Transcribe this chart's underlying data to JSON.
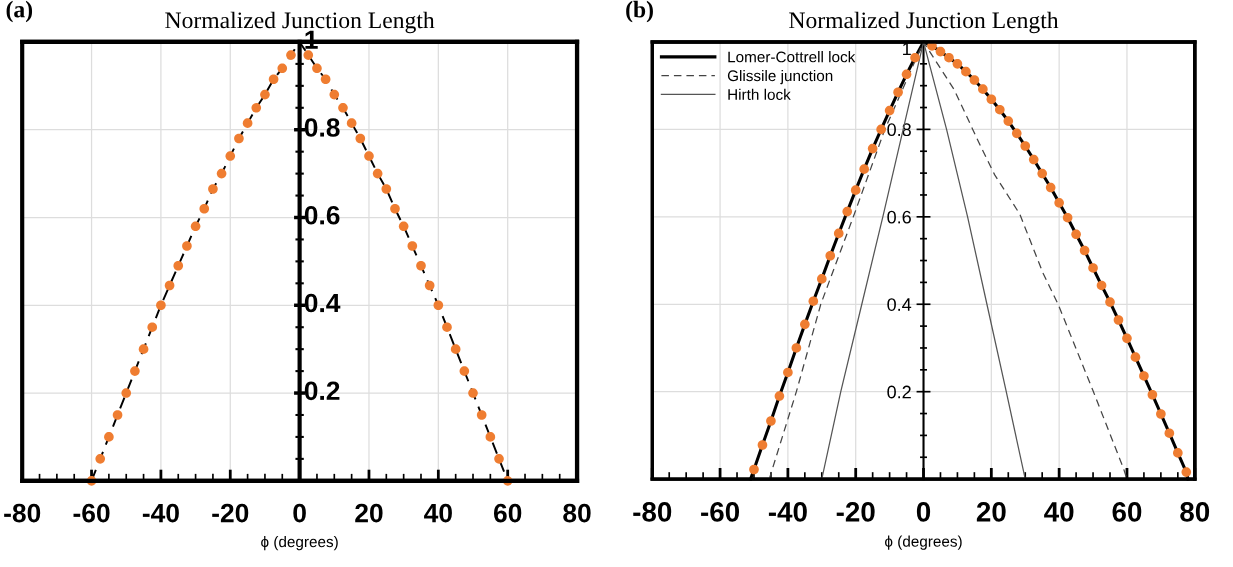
{
  "chart_data": [
    {
      "type": "line",
      "title": "Normalized Junction Length",
      "xlabel": "ϕ (degrees)",
      "annotations": [
        "(a)"
      ],
      "xlim": [
        -80,
        80
      ],
      "ylim": [
        0,
        1
      ],
      "xticks": [
        -80,
        -60,
        -40,
        -20,
        0,
        20,
        40,
        60,
        80
      ],
      "yticks": [
        {
          "value": 0,
          "label": null
        },
        0.2,
        0.4,
        0.6,
        0.8,
        1
      ],
      "grid": true,
      "series": [
        {
          "color": "#000000",
          "line_style": "dashed",
          "x": [
            -60,
            -57.5,
            -55,
            -52.5,
            -50,
            -47.5,
            -45,
            -42.5,
            -40,
            -37.5,
            -35,
            -32.5,
            -30,
            -27.5,
            -25,
            -22.5,
            -20,
            -17.5,
            -15,
            -12.5,
            -10,
            -7.5,
            -5,
            -2.5,
            0,
            2.5,
            5,
            7.5,
            10,
            12.5,
            15,
            17.5,
            20,
            22.5,
            25,
            27.5,
            30,
            32.5,
            35,
            37.5,
            40,
            42.5,
            45,
            47.5,
            50,
            52.5,
            55,
            57.5,
            60
          ],
          "values": [
            0,
            0.05,
            0.1,
            0.15,
            0.2,
            0.25,
            0.3,
            0.35,
            0.4,
            0.445,
            0.49,
            0.535,
            0.58,
            0.62,
            0.665,
            0.7,
            0.74,
            0.78,
            0.815,
            0.85,
            0.88,
            0.915,
            0.94,
            0.97,
            1,
            0.97,
            0.94,
            0.915,
            0.88,
            0.85,
            0.815,
            0.78,
            0.74,
            0.7,
            0.665,
            0.62,
            0.58,
            0.535,
            0.49,
            0.445,
            0.4,
            0.35,
            0.3,
            0.25,
            0.2,
            0.15,
            0.1,
            0.05,
            0
          ]
        },
        {
          "type": "scatter",
          "color": "#ef7d31",
          "marker": "circle",
          "x": [
            -60,
            -57.5,
            -55,
            -52.5,
            -50,
            -47.5,
            -45,
            -42.5,
            -40,
            -37.5,
            -35,
            -32.5,
            -30,
            -27.5,
            -25,
            -22.5,
            -20,
            -17.5,
            -15,
            -12.5,
            -10,
            -7.5,
            -5,
            -2.5,
            2.5,
            5,
            7.5,
            10,
            12.5,
            15,
            17.5,
            20,
            22.5,
            25,
            27.5,
            30,
            32.5,
            35,
            37.5,
            40,
            42.5,
            45,
            47.5,
            50,
            52.5,
            55,
            57.5,
            60
          ],
          "values": [
            0,
            0.05,
            0.1,
            0.15,
            0.2,
            0.25,
            0.3,
            0.35,
            0.4,
            0.445,
            0.49,
            0.535,
            0.58,
            0.62,
            0.665,
            0.7,
            0.74,
            0.78,
            0.815,
            0.85,
            0.88,
            0.915,
            0.94,
            0.97,
            0.97,
            0.94,
            0.915,
            0.88,
            0.85,
            0.815,
            0.78,
            0.74,
            0.7,
            0.665,
            0.62,
            0.58,
            0.535,
            0.49,
            0.445,
            0.4,
            0.35,
            0.3,
            0.25,
            0.2,
            0.15,
            0.1,
            0.05,
            0
          ]
        }
      ]
    },
    {
      "type": "line",
      "title": "Normalized Junction Length",
      "xlabel": "ϕ (degrees)",
      "annotations": [
        "(b)"
      ],
      "xlim": [
        -80,
        80
      ],
      "ylim": [
        0,
        1
      ],
      "xticks": [
        -80,
        -60,
        -40,
        -20,
        0,
        20,
        40,
        60,
        80
      ],
      "yticks": [
        {
          "value": 0,
          "label": null
        },
        0.2,
        0.4,
        0.6,
        0.8,
        1
      ],
      "grid": true,
      "legend": "top left",
      "series": [
        {
          "name": "Lomer-Cottrell lock",
          "color": "#000000",
          "line_style": "solid",
          "x": [
            -51,
            -50,
            -47.5,
            -45,
            -42.5,
            -40,
            -37.5,
            -35,
            -32.5,
            -30,
            -27.5,
            -25,
            -22.5,
            -20,
            -17.5,
            -15,
            -12.5,
            -10,
            -7.5,
            -5,
            -2.5,
            0,
            2.5,
            5,
            7.5,
            10,
            12.5,
            15,
            17.5,
            20,
            22.5,
            25,
            27.5,
            30,
            32.5,
            35,
            37.5,
            40,
            42.5,
            45,
            47.5,
            50,
            52.5,
            55,
            57.5,
            60,
            62.5,
            65,
            67.5,
            70,
            72.5,
            75,
            77.5,
            78
          ],
          "values": [
            0,
            0.022,
            0.078,
            0.133,
            0.19,
            0.244,
            0.3,
            0.354,
            0.407,
            0.458,
            0.511,
            0.562,
            0.612,
            0.661,
            0.709,
            0.756,
            0.8,
            0.843,
            0.885,
            0.926,
            0.964,
            1,
            0.991,
            0.978,
            0.964,
            0.95,
            0.932,
            0.913,
            0.892,
            0.869,
            0.845,
            0.819,
            0.791,
            0.762,
            0.731,
            0.699,
            0.667,
            0.632,
            0.598,
            0.56,
            0.523,
            0.483,
            0.443,
            0.405,
            0.364,
            0.322,
            0.279,
            0.236,
            0.193,
            0.149,
            0.105,
            0.06,
            0.016,
            0
          ]
        },
        {
          "name": "Glissile junction",
          "color": "#444444",
          "line_style": "dashed",
          "x": [
            -45.5,
            -37.5,
            -30.3,
            -20.7,
            -11.4,
            0,
            9.1,
            16.5,
            21,
            28.4,
            35.2,
            39.7,
            50,
            59,
            60
          ],
          "values": [
            0,
            0.2,
            0.4,
            0.6,
            0.8,
            1,
            0.89,
            0.767,
            0.696,
            0.606,
            0.472,
            0.4,
            0.202,
            0.024,
            0
          ]
        },
        {
          "name": "Hirth lock",
          "color": "#555555",
          "line_style": "solid",
          "x": [
            -30,
            -24.4,
            -18.2,
            -12,
            -6,
            0,
            6.8,
            13,
            18.7,
            24.4,
            30
          ],
          "values": [
            0,
            0.2,
            0.4,
            0.6,
            0.8,
            1,
            0.8,
            0.6,
            0.4,
            0.2,
            0
          ]
        },
        {
          "type": "scatter",
          "color": "#ef7d31",
          "marker": "circle",
          "x": [
            -50,
            -47.5,
            -45,
            -42.5,
            -40,
            -37.5,
            -35,
            -32.5,
            -30,
            -27.5,
            -25,
            -22.5,
            -20,
            -17.5,
            -15,
            -12.5,
            -10,
            -7.5,
            -5,
            -2.5,
            2.5,
            5,
            7.5,
            10,
            12.5,
            15,
            17.5,
            20,
            22.5,
            25,
            27.5,
            30,
            32.5,
            35,
            37.5,
            40,
            42.5,
            45,
            47.5,
            50,
            52.5,
            55,
            57.5,
            60,
            62.5,
            65,
            67.5,
            70,
            72.5,
            75,
            77.5
          ],
          "values": [
            0.022,
            0.078,
            0.133,
            0.19,
            0.244,
            0.3,
            0.354,
            0.407,
            0.458,
            0.511,
            0.562,
            0.612,
            0.661,
            0.709,
            0.756,
            0.8,
            0.843,
            0.885,
            0.926,
            0.964,
            0.991,
            0.978,
            0.964,
            0.95,
            0.932,
            0.913,
            0.892,
            0.869,
            0.845,
            0.819,
            0.791,
            0.762,
            0.731,
            0.699,
            0.667,
            0.632,
            0.598,
            0.56,
            0.523,
            0.483,
            0.443,
            0.405,
            0.364,
            0.322,
            0.279,
            0.236,
            0.193,
            0.149,
            0.105,
            0.06,
            0.016
          ]
        }
      ]
    }
  ]
}
